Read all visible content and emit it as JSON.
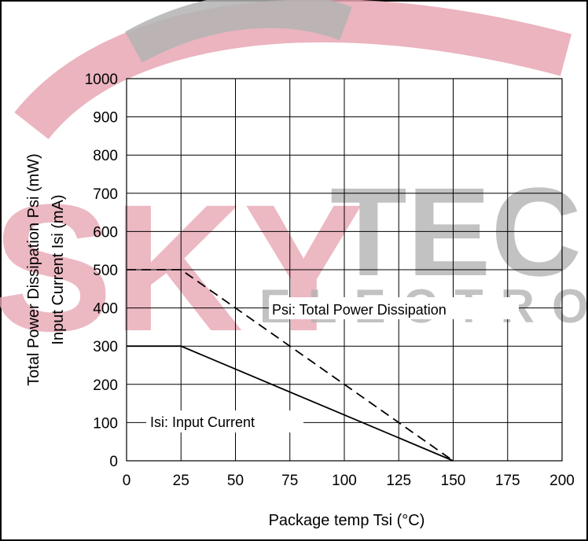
{
  "chart_data": {
    "type": "line",
    "xlabel": "Package temp Tsi (°C)",
    "ylabel_line1": "Total Power Dissipation  Psi (mW)",
    "ylabel_line2": "Input Current  Isi (mA)",
    "xlim": [
      0,
      200
    ],
    "ylim": [
      0,
      1000
    ],
    "x_ticks": [
      0,
      25,
      50,
      75,
      100,
      125,
      150,
      175,
      200
    ],
    "y_ticks": [
      0,
      100,
      200,
      300,
      400,
      500,
      600,
      700,
      800,
      900,
      1000
    ],
    "grid": true,
    "series": [
      {
        "name": "Psi: Total Power Dissipation",
        "style": "dashed",
        "x": [
          0,
          25,
          150
        ],
        "y": [
          500,
          500,
          0
        ]
      },
      {
        "name": "Isi: Input Current",
        "style": "solid",
        "x": [
          0,
          25,
          150
        ],
        "y": [
          300,
          300,
          0
        ]
      }
    ]
  },
  "watermark": {
    "text_main": "SKYTEC",
    "text_sub": "ELECTRO",
    "colors": {
      "red": "#e8a7b3",
      "gray": "#b3b3b3"
    }
  }
}
